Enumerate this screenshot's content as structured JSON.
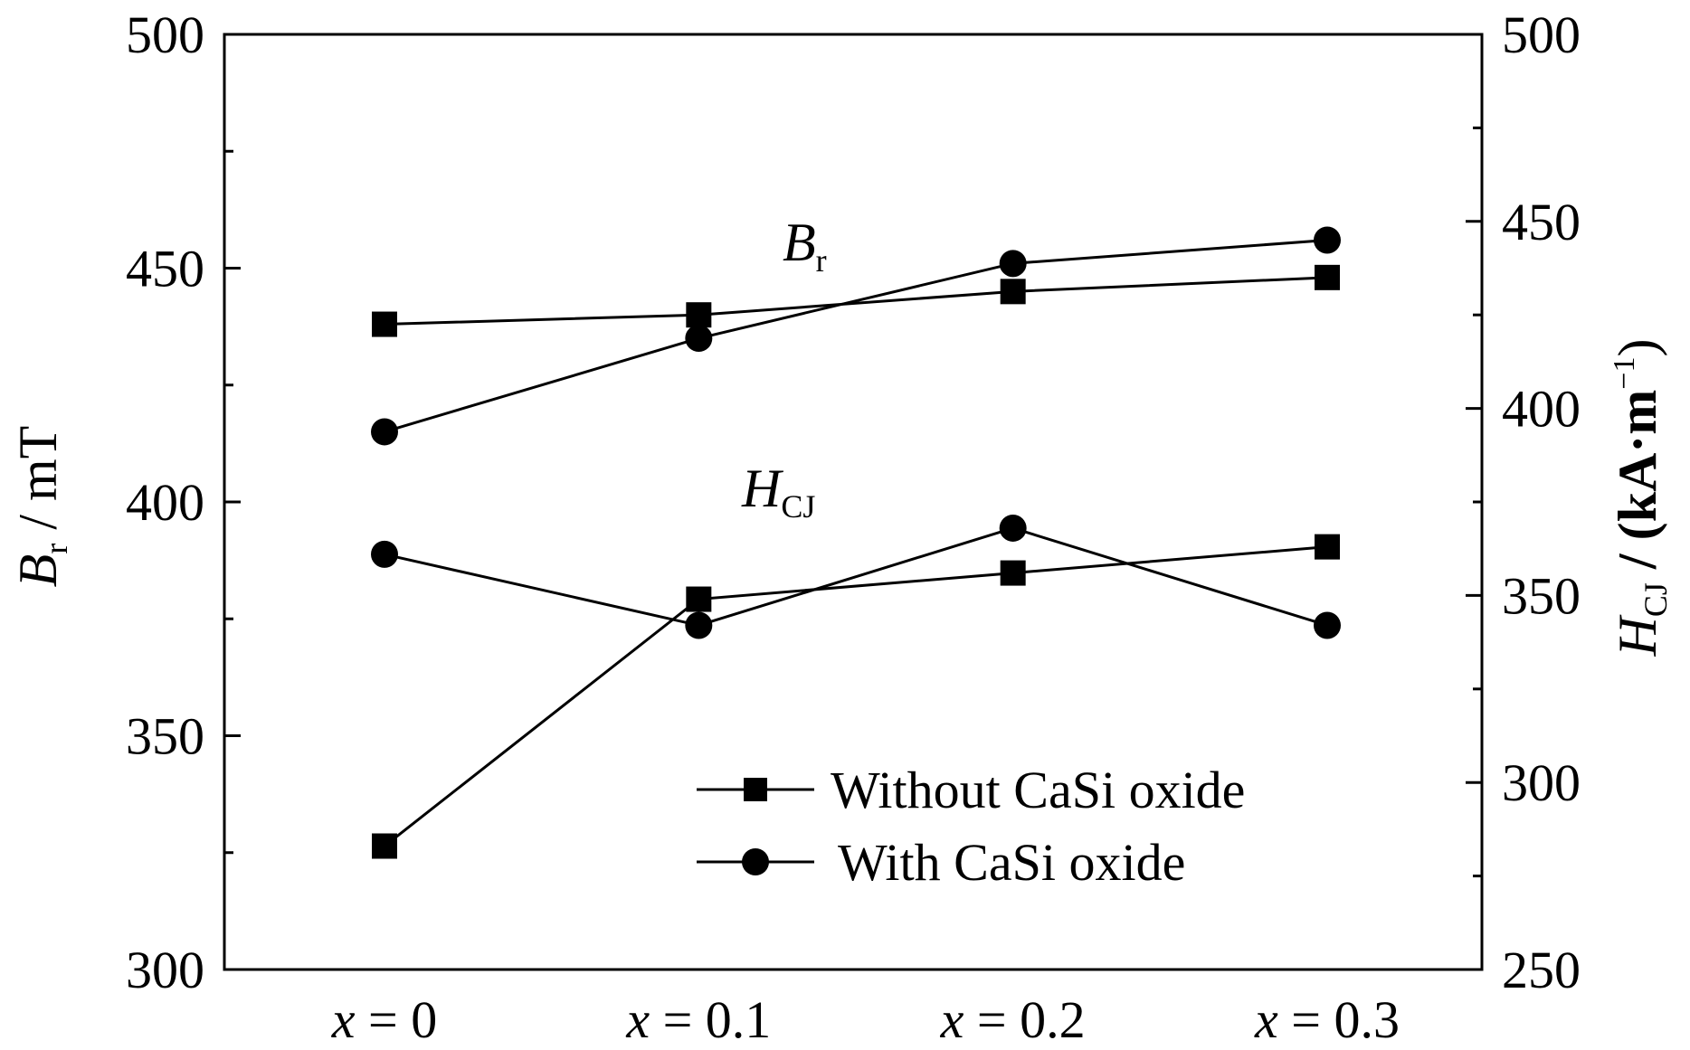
{
  "chart_data": {
    "type": "line",
    "categories": [
      "x = 0",
      "x = 0.1",
      "x = 0.2",
      "x = 0.3"
    ],
    "category_labels": [
      {
        "var": "x",
        "rest": " = 0"
      },
      {
        "var": "x",
        "rest": " = 0.1"
      },
      {
        "var": "x",
        "rest": " = 0.2"
      },
      {
        "var": "x",
        "rest": " = 0.3"
      }
    ],
    "left_axis": {
      "label_main": "B",
      "label_sub": "r",
      "label_rest": " / mT",
      "ylim": [
        300,
        500
      ],
      "ticks": [
        300,
        350,
        400,
        450,
        500
      ]
    },
    "right_axis": {
      "label_main": "H",
      "label_sub": "CJ",
      "label_rest": " / (kA·m",
      "label_sup": "−1",
      "label_end": ")",
      "ylim": [
        250,
        500
      ],
      "ticks": [
        250,
        300,
        350,
        400,
        450,
        500
      ]
    },
    "annotations": {
      "br": {
        "main": "B",
        "sub": "r"
      },
      "hcj": {
        "main": "H",
        "sub": "CJ"
      }
    },
    "series": [
      {
        "name": "Without CaSi oxide",
        "quantity": "Br",
        "axis": "left",
        "marker": "square",
        "values": [
          438,
          440,
          445,
          448
        ]
      },
      {
        "name": "With CaSi oxide",
        "quantity": "Br",
        "axis": "left",
        "marker": "circle",
        "values": [
          415,
          435,
          451,
          456
        ]
      },
      {
        "name": "Without CaSi oxide",
        "quantity": "HCJ",
        "axis": "right",
        "marker": "square",
        "values": [
          283,
          349,
          356,
          363
        ]
      },
      {
        "name": "With CaSi oxide",
        "quantity": "HCJ",
        "axis": "right",
        "marker": "circle",
        "values": [
          361,
          342,
          368,
          342
        ]
      }
    ],
    "legend": {
      "position": "bottom-right",
      "entries": [
        {
          "label": "Without CaSi oxide",
          "marker": "square"
        },
        {
          "label": "With CaSi oxide",
          "marker": "circle"
        }
      ]
    },
    "grid": false
  }
}
